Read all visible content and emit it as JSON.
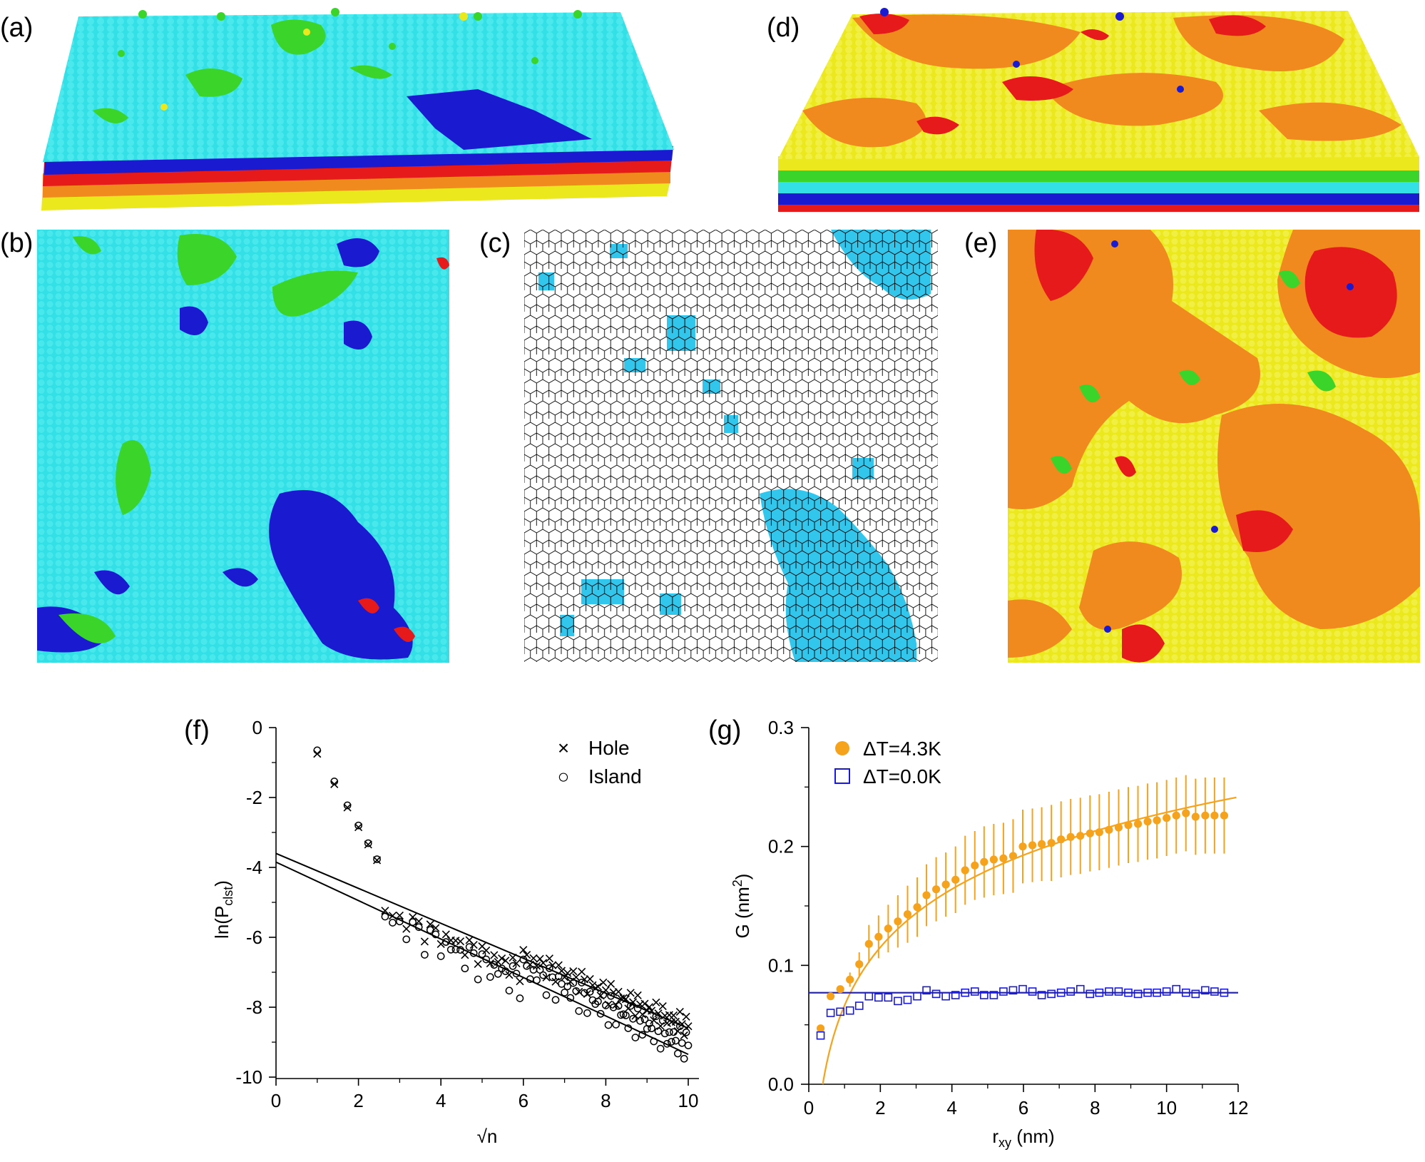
{
  "panel_labels": {
    "a": "(a)",
    "b": "(b)",
    "c": "(c)",
    "d": "(d)",
    "e": "(e)",
    "f": "(f)",
    "g": "(g)"
  },
  "colors": {
    "cyan": "#33e0e6",
    "blue": "#1a1ad0",
    "red": "#e61a1a",
    "orange": "#f08a1e",
    "yellow": "#ece81e",
    "green": "#3ad42a",
    "hex_fill": "#33c6ec",
    "g_orange": "#f5a21c",
    "g_blue": "#1a1ad6"
  },
  "chart_data": [
    {
      "type": "scatter",
      "panel": "f",
      "ylabel": "ln(P",
      "ylabel_sub": "clst",
      "ylabel_end": ")",
      "xlabel": "√n",
      "xlim": [
        0,
        10
      ],
      "ylim": [
        -10,
        0
      ],
      "xticks": [
        "0",
        "2",
        "4",
        "6",
        "8",
        "10"
      ],
      "yticks": [
        "0",
        "-2",
        "-4",
        "-6",
        "-8",
        "-10"
      ],
      "legend": [
        {
          "marker": "×",
          "label": "Hole"
        },
        {
          "marker": "○",
          "label": "Island"
        }
      ],
      "fit_lines": [
        {
          "name": "hole fit",
          "x": [
            0,
            10
          ],
          "y": [
            -3.6,
            -8.6
          ]
        },
        {
          "name": "island fit",
          "x": [
            0,
            10
          ],
          "y": [
            -3.85,
            -9.35
          ]
        }
      ]
    },
    {
      "type": "scatter",
      "panel": "g",
      "ylabel": "G (nm",
      "ylabel_sup": "2",
      "ylabel_end": ")",
      "xlabel": "r",
      "xlabel_sub": "xy",
      "xlabel_end": " (nm)",
      "xlim": [
        0,
        12
      ],
      "ylim": [
        0,
        0.3
      ],
      "xticks": [
        "0",
        "2",
        "4",
        "6",
        "8",
        "10",
        "12"
      ],
      "yticks": [
        "0.0",
        "0.1",
        "0.2",
        "0.3"
      ],
      "legend": [
        {
          "marker": "●",
          "label": "ΔT=4.3K"
        },
        {
          "marker": "□",
          "label": "ΔT=0.0K"
        }
      ],
      "series": [
        {
          "name": "ΔT=4.3K",
          "x": [
            0.33,
            0.61,
            0.88,
            1.15,
            1.41,
            1.68,
            1.95,
            2.22,
            2.49,
            2.76,
            3.03,
            3.29,
            3.56,
            3.83,
            4.1,
            4.37,
            4.64,
            4.9,
            5.17,
            5.44,
            5.71,
            5.98,
            6.25,
            6.51,
            6.78,
            7.05,
            7.32,
            7.59,
            7.86,
            8.12,
            8.39,
            8.66,
            8.93,
            9.2,
            9.47,
            9.73,
            10.0,
            10.27,
            10.54,
            10.81,
            11.08,
            11.34,
            11.61
          ],
          "y": [
            0.047,
            0.074,
            0.08,
            0.088,
            0.101,
            0.118,
            0.124,
            0.131,
            0.137,
            0.143,
            0.149,
            0.159,
            0.164,
            0.168,
            0.172,
            0.18,
            0.184,
            0.187,
            0.189,
            0.19,
            0.192,
            0.2,
            0.201,
            0.202,
            0.203,
            0.206,
            0.208,
            0.209,
            0.211,
            0.212,
            0.214,
            0.216,
            0.218,
            0.219,
            0.221,
            0.222,
            0.224,
            0.226,
            0.228,
            0.225,
            0.226,
            0.226,
            0.226
          ],
          "err": [
            0.0,
            0.0,
            0.0,
            0.006,
            0.01,
            0.016,
            0.018,
            0.02,
            0.022,
            0.024,
            0.025,
            0.026,
            0.027,
            0.027,
            0.028,
            0.029,
            0.029,
            0.03,
            0.03,
            0.03,
            0.031,
            0.031,
            0.031,
            0.031,
            0.032,
            0.032,
            0.032,
            0.032,
            0.032,
            0.032,
            0.032,
            0.032,
            0.032,
            0.032,
            0.032,
            0.032,
            0.032,
            0.032,
            0.032,
            0.032,
            0.032,
            0.032,
            0.032
          ]
        },
        {
          "name": "ΔT=0.0K",
          "x": [
            0.33,
            0.61,
            0.88,
            1.15,
            1.41,
            1.68,
            1.95,
            2.22,
            2.49,
            2.76,
            3.03,
            3.29,
            3.56,
            3.83,
            4.1,
            4.37,
            4.64,
            4.9,
            5.17,
            5.44,
            5.71,
            5.98,
            6.25,
            6.51,
            6.78,
            7.05,
            7.32,
            7.59,
            7.86,
            8.12,
            8.39,
            8.66,
            8.93,
            9.2,
            9.47,
            9.73,
            10.0,
            10.27,
            10.54,
            10.81,
            11.08,
            11.34,
            11.61
          ],
          "y": [
            0.041,
            0.06,
            0.061,
            0.062,
            0.066,
            0.074,
            0.073,
            0.073,
            0.07,
            0.071,
            0.074,
            0.079,
            0.076,
            0.074,
            0.075,
            0.077,
            0.078,
            0.075,
            0.075,
            0.078,
            0.079,
            0.08,
            0.078,
            0.075,
            0.076,
            0.077,
            0.078,
            0.08,
            0.076,
            0.077,
            0.078,
            0.078,
            0.077,
            0.076,
            0.077,
            0.077,
            0.078,
            0.08,
            0.077,
            0.076,
            0.079,
            0.078,
            0.077
          ]
        }
      ],
      "fit_lines": [
        {
          "name": "ΔT=4.3K fit",
          "form": "A·ln(x/x0)",
          "A": 0.0705,
          "x0": 0.39,
          "x_range": [
            0.39,
            11.95
          ]
        },
        {
          "name": "ΔT=0.0K fit",
          "form": "const",
          "y": 0.077,
          "x_range": [
            0,
            12
          ]
        }
      ]
    }
  ]
}
